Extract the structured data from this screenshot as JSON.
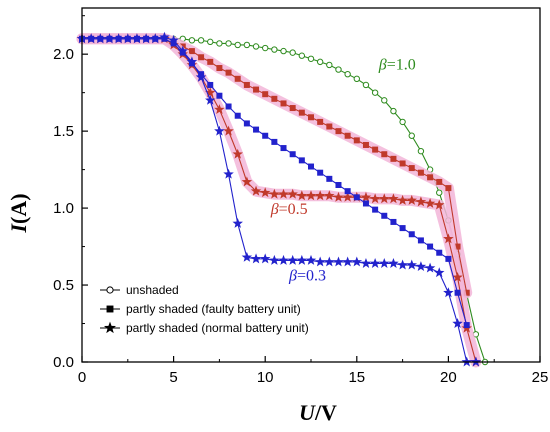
{
  "chart_data": {
    "type": "line",
    "xlabel": {
      "main": "U",
      "unit": "/V"
    },
    "ylabel": {
      "main": "I",
      "unit": "(A)"
    },
    "xlim": [
      0,
      25
    ],
    "ylim": [
      0,
      2.3
    ],
    "xticks": [
      0,
      5,
      10,
      15,
      20,
      25
    ],
    "yticks": [
      0.0,
      0.5,
      1.0,
      1.5,
      2.0
    ],
    "xtick_labels": [
      "0",
      "5",
      "10",
      "15",
      "20",
      "25"
    ],
    "ytick_labels": [
      "0.0",
      "0.5",
      "1.0",
      "1.5",
      "2.0"
    ],
    "grid": false,
    "legend_position": "bottom-left",
    "legend": [
      {
        "label": "unshaded",
        "marker": "circle-open"
      },
      {
        "label": "partly shaded (faulty battery unit)",
        "marker": "square"
      },
      {
        "label": "partly shaded (normal battery unit)",
        "marker": "star"
      }
    ],
    "annotations": [
      {
        "greek": "β",
        "text": "=1.0",
        "x": 16.2,
        "y": 1.9,
        "color": "#2e8b1e"
      },
      {
        "greek": "β",
        "text": "=0.5",
        "x": 10.3,
        "y": 0.96,
        "color": "#c0392b"
      },
      {
        "greek": "β",
        "text": "=0.3",
        "x": 11.3,
        "y": 0.53,
        "color": "#2222cc"
      }
    ],
    "series": [
      {
        "role": "unshaded, beta=1.0",
        "color": "#2e8b1e",
        "marker": "circle-open",
        "x": [
          0,
          0.5,
          1,
          1.5,
          2,
          2.5,
          3,
          3.5,
          4,
          4.5,
          5,
          5.5,
          6,
          6.5,
          7,
          7.5,
          8,
          8.5,
          9,
          9.5,
          10,
          10.5,
          11,
          11.5,
          12,
          12.5,
          13,
          13.5,
          14,
          14.5,
          15,
          15.5,
          16,
          16.5,
          17,
          17.5,
          18,
          18.5,
          19,
          19.5,
          20,
          20.5,
          21,
          21.5,
          22
        ],
        "y": [
          2.1,
          2.1,
          2.1,
          2.1,
          2.1,
          2.1,
          2.1,
          2.1,
          2.1,
          2.1,
          2.1,
          2.1,
          2.09,
          2.09,
          2.08,
          2.07,
          2.07,
          2.06,
          2.06,
          2.05,
          2.04,
          2.03,
          2.02,
          2.01,
          1.99,
          1.97,
          1.95,
          1.93,
          1.9,
          1.87,
          1.84,
          1.8,
          1.75,
          1.7,
          1.63,
          1.56,
          1.47,
          1.37,
          1.25,
          1.1,
          0.92,
          0.7,
          0.44,
          0.18,
          0.0
        ]
      },
      {
        "role": "faulty battery unit, beta=0.5",
        "color": "#c0392b",
        "marker": "square",
        "x": [
          0,
          0.5,
          1,
          1.5,
          2,
          2.5,
          3,
          3.5,
          4,
          4.5,
          5,
          5.5,
          6,
          6.5,
          7,
          7.5,
          8,
          8.5,
          9,
          9.5,
          10,
          10.5,
          11,
          11.5,
          12,
          12.5,
          13,
          13.5,
          14,
          14.5,
          15,
          15.5,
          16,
          16.5,
          17,
          17.5,
          18,
          18.5,
          19,
          19.5,
          20,
          20.5,
          21
        ],
        "y": [
          2.1,
          2.1,
          2.1,
          2.1,
          2.1,
          2.1,
          2.1,
          2.1,
          2.1,
          2.1,
          2.08,
          2.05,
          2.02,
          1.98,
          1.95,
          1.91,
          1.88,
          1.84,
          1.8,
          1.77,
          1.74,
          1.71,
          1.68,
          1.65,
          1.62,
          1.59,
          1.56,
          1.53,
          1.5,
          1.47,
          1.44,
          1.41,
          1.38,
          1.35,
          1.32,
          1.29,
          1.26,
          1.23,
          1.2,
          1.17,
          1.13,
          0.75,
          0.45
        ]
      },
      {
        "role": "normal battery unit, beta=0.5",
        "color": "#c0392b",
        "marker": "star",
        "x": [
          0,
          0.5,
          1,
          1.5,
          2,
          2.5,
          3,
          3.5,
          4,
          4.5,
          5,
          5.5,
          6,
          6.5,
          7,
          7.5,
          8,
          8.5,
          9,
          9.5,
          10,
          10.5,
          11,
          11.5,
          12,
          12.5,
          13,
          13.5,
          14,
          14.5,
          15,
          15.5,
          16,
          16.5,
          17,
          17.5,
          18,
          18.5,
          19,
          19.5,
          20,
          20.5,
          21,
          21.5
        ],
        "y": [
          2.1,
          2.1,
          2.1,
          2.1,
          2.1,
          2.1,
          2.1,
          2.1,
          2.1,
          2.1,
          2.06,
          2.0,
          1.93,
          1.85,
          1.75,
          1.64,
          1.5,
          1.35,
          1.17,
          1.11,
          1.1,
          1.09,
          1.09,
          1.09,
          1.08,
          1.08,
          1.08,
          1.08,
          1.07,
          1.07,
          1.07,
          1.07,
          1.06,
          1.06,
          1.06,
          1.05,
          1.05,
          1.04,
          1.03,
          1.02,
          0.8,
          0.55,
          0.22,
          0.0
        ]
      },
      {
        "role": "faulty battery unit, beta=0.3",
        "color": "#2222cc",
        "marker": "square",
        "x": [
          0,
          0.5,
          1,
          1.5,
          2,
          2.5,
          3,
          3.5,
          4,
          4.5,
          5,
          5.5,
          6,
          6.5,
          7,
          7.5,
          8,
          8.5,
          9,
          9.5,
          10,
          10.5,
          11,
          11.5,
          12,
          12.5,
          13,
          13.5,
          14,
          14.5,
          15,
          15.5,
          16,
          16.5,
          17,
          17.5,
          18,
          18.5,
          19,
          19.5,
          20,
          20.5,
          21
        ],
        "y": [
          2.1,
          2.1,
          2.1,
          2.1,
          2.1,
          2.1,
          2.1,
          2.1,
          2.1,
          2.1,
          2.07,
          2.01,
          1.94,
          1.87,
          1.8,
          1.73,
          1.66,
          1.6,
          1.55,
          1.51,
          1.47,
          1.43,
          1.39,
          1.35,
          1.31,
          1.27,
          1.23,
          1.19,
          1.15,
          1.11,
          1.07,
          1.03,
          0.99,
          0.95,
          0.91,
          0.87,
          0.83,
          0.79,
          0.75,
          0.71,
          0.67,
          0.45,
          0.24
        ]
      },
      {
        "role": "normal battery unit, beta=0.3",
        "color": "#2222cc",
        "marker": "star",
        "x": [
          0,
          0.5,
          1,
          1.5,
          2,
          2.5,
          3,
          3.5,
          4,
          4.5,
          5,
          5.5,
          6,
          6.5,
          7,
          7.5,
          8,
          8.5,
          9,
          9.5,
          10,
          10.5,
          11,
          11.5,
          12,
          12.5,
          13,
          13.5,
          14,
          14.5,
          15,
          15.5,
          16,
          16.5,
          17,
          17.5,
          18,
          18.5,
          19,
          19.5,
          20,
          20.5,
          21,
          21.5
        ],
        "y": [
          2.1,
          2.1,
          2.1,
          2.1,
          2.1,
          2.1,
          2.1,
          2.1,
          2.1,
          2.11,
          2.09,
          2.02,
          1.95,
          1.85,
          1.7,
          1.5,
          1.22,
          0.9,
          0.68,
          0.67,
          0.67,
          0.66,
          0.66,
          0.66,
          0.66,
          0.66,
          0.65,
          0.65,
          0.65,
          0.65,
          0.65,
          0.64,
          0.64,
          0.64,
          0.64,
          0.63,
          0.63,
          0.62,
          0.61,
          0.58,
          0.45,
          0.25,
          0.0,
          0.0
        ]
      }
    ]
  }
}
